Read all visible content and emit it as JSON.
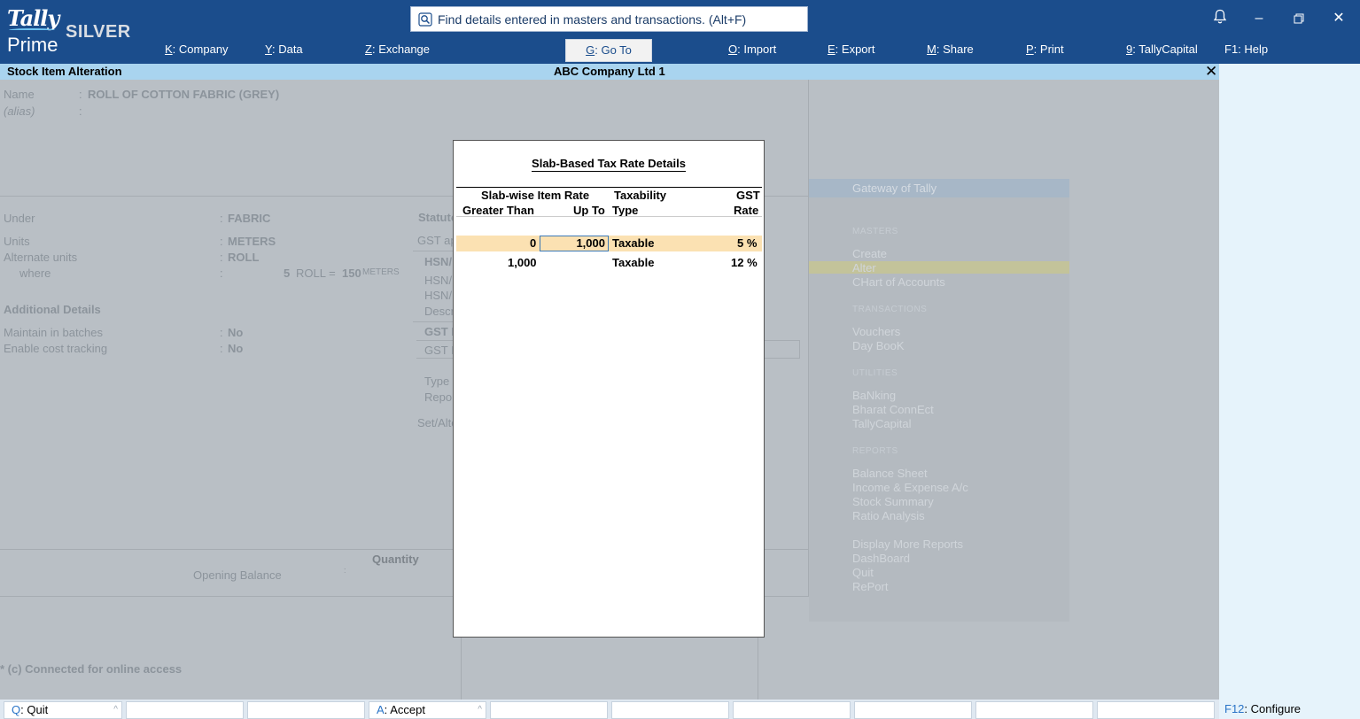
{
  "app": {
    "logo_tally": "Tally",
    "logo_prime": "Prime",
    "edition": "SILVER"
  },
  "search": {
    "placeholder": "Find details entered in masters and transactions. (Alt+F)"
  },
  "menu": [
    {
      "key": "K",
      "label": "Company"
    },
    {
      "key": "Y",
      "label": "Data"
    },
    {
      "key": "Z",
      "label": "Exchange"
    },
    {
      "key": "G",
      "label": "Go To"
    },
    {
      "key": "O",
      "label": "Import"
    },
    {
      "key": "E",
      "label": "Export"
    },
    {
      "key": "M",
      "label": "Share"
    },
    {
      "key": "P",
      "label": "Print"
    },
    {
      "key": "9",
      "label": "TallyCapital"
    },
    {
      "key": "F1",
      "label": "Help"
    }
  ],
  "titlebar": {
    "screen": "Stock Item Alteration",
    "company": "ABC Company Ltd 1"
  },
  "form": {
    "name_label": "Name",
    "name_value": "ROLL OF COTTON FABRIC (GREY)",
    "alias_label": "(alias)",
    "under_label": "Under",
    "under_value": "FABRIC",
    "units_label": "Units",
    "units_value": "METERS",
    "alt_units_label": "Alternate units",
    "alt_units_value": "ROLL",
    "where_label": "where",
    "where_qty": "5",
    "where_unit": "ROLL =",
    "where_conv": "150",
    "where_conv_unit": "METERS",
    "additional_details": "Additional Details",
    "batches_label": "Maintain in batches",
    "batches_value": "No",
    "cost_label": "Enable cost tracking",
    "cost_value": "No",
    "statutory_partial": "Statuto",
    "gst_partial": "GST ap",
    "hsn_partial": "HSN/",
    "hsn2_partial": "HSN/",
    "hsn3_partial": "HSN/",
    "desc_partial": "Descr",
    "gst_bold_partial": "GST I",
    "gst_det_partial": "GST I",
    "type_partial": "Type",
    "repo_partial": "Repo",
    "setalt_partial": "Set/Alte",
    "quantity_header": "Quantity",
    "opening_balance": "Opening Balance",
    "connected": "* (c) Connected for online access"
  },
  "gateway": {
    "title": "Gateway of Tally",
    "masters_head": "MASTERS",
    "masters": [
      "Create",
      "Alter",
      "CHart of Accounts"
    ],
    "transactions_head": "TRANSACTIONS",
    "transactions": [
      "Vouchers",
      "Day BooK"
    ],
    "utilities_head": "UTILITIES",
    "utilities": [
      "BaNking",
      "Bharat ConnEct",
      "TallyCapital"
    ],
    "reports_head": "REPORTS",
    "reports": [
      "Balance Sheet",
      "Income & Expense A/c",
      "Stock Summary",
      "Ratio Analysis"
    ],
    "more": [
      "Display More Reports",
      "DashBoard",
      "Quit",
      "RePort"
    ]
  },
  "modal": {
    "title": "Slab-Based Tax Rate Details",
    "col_slab": "Slab-wise Item Rate",
    "col_greater": "Greater Than",
    "col_upto": "Up To",
    "col_taxability": "Taxability",
    "col_type": "Type",
    "col_gst": "GST",
    "col_rate": "Rate",
    "rows": [
      {
        "greater": "0",
        "upto": "1,000",
        "type": "Taxable",
        "rate": "5 %"
      },
      {
        "greater": "1,000",
        "upto": "",
        "type": "Taxable",
        "rate": "12 %"
      }
    ]
  },
  "statusbar": {
    "quit_key": "Q",
    "quit_label": "Quit",
    "accept_key": "A",
    "accept_label": "Accept",
    "configure_key": "F12",
    "configure_label": "Configure"
  }
}
